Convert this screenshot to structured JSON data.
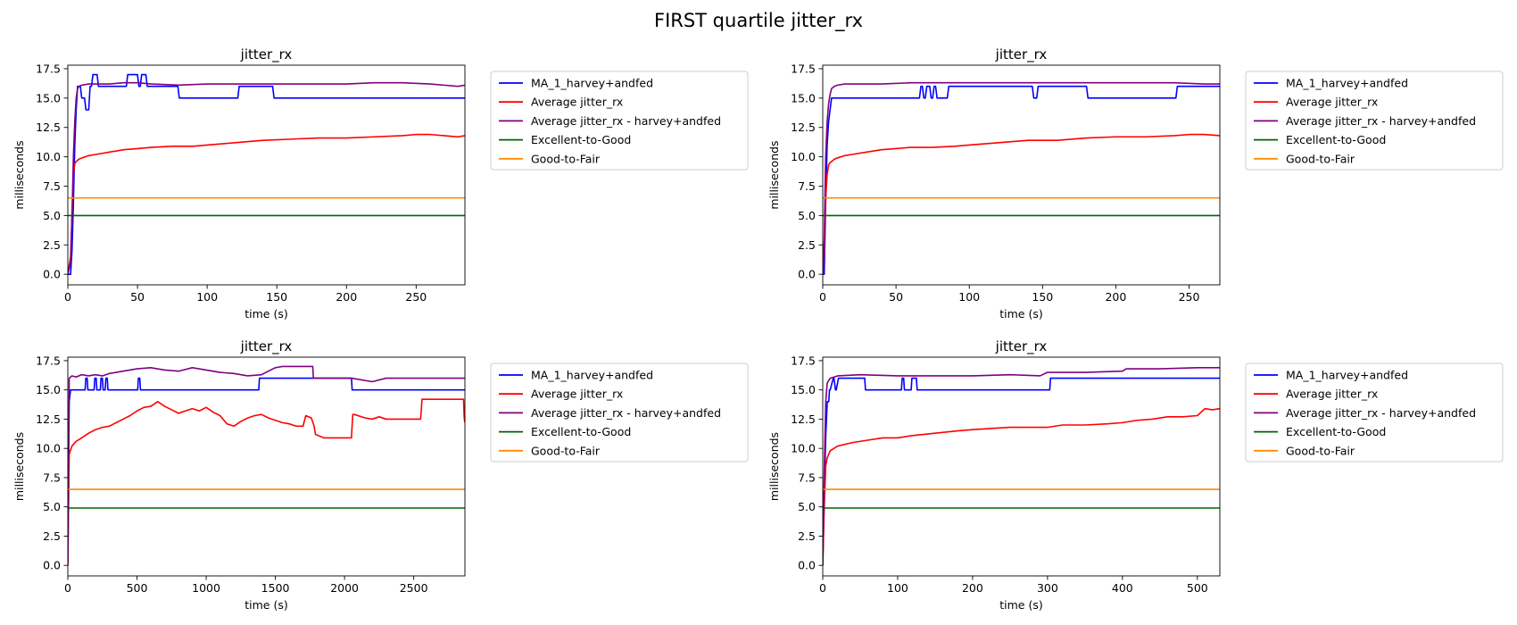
{
  "figure": {
    "suptitle": "FIRST quartile jitter_rx"
  },
  "colors": {
    "ma": "#0000ff",
    "avg": "#ff0000",
    "avg_hf": "#800080",
    "excellent": "#006400",
    "good_fair": "#ff8c00",
    "axis": "#000000",
    "legend_border": "#cccccc"
  },
  "legend": {
    "placement": "outside-right-top",
    "entries": [
      {
        "label": "MA_1_harvey+andfed",
        "color_key": "ma"
      },
      {
        "label": "Average jitter_rx",
        "color_key": "avg"
      },
      {
        "label": "Average jitter_rx - harvey+andfed",
        "color_key": "avg_hf"
      },
      {
        "label": "Excellent-to-Good",
        "color_key": "excellent"
      },
      {
        "label": "Good-to-Fair",
        "color_key": "good_fair"
      }
    ]
  },
  "chart_data": [
    {
      "type": "line",
      "title": "jitter_rx",
      "xlabel": "time (s)",
      "ylabel": "milliseconds",
      "xlim": [
        0,
        285
      ],
      "ylim": [
        -0.9,
        17.8
      ],
      "xticks": [
        0,
        50,
        100,
        150,
        200,
        250
      ],
      "yticks": [
        0.0,
        2.5,
        5.0,
        7.5,
        10.0,
        12.5,
        15.0,
        17.5
      ],
      "grid": false,
      "series": [
        {
          "name": "MA_1_harvey+andfed",
          "color_key": "ma",
          "x": [
            0,
            2,
            3,
            4,
            5,
            6,
            7,
            9,
            10,
            12,
            13,
            15,
            16,
            17,
            18,
            19,
            20,
            21,
            22,
            23,
            42,
            43,
            50,
            51,
            52,
            53,
            54,
            56,
            57,
            58,
            79,
            80,
            122,
            123,
            147,
            148,
            285
          ],
          "y": [
            0,
            0,
            2,
            6,
            11,
            14,
            16,
            16,
            15,
            15,
            14,
            14,
            16,
            16,
            17,
            17,
            17,
            17,
            16,
            16,
            16,
            17,
            17,
            16,
            16,
            17,
            17,
            17,
            16,
            16,
            16,
            15,
            15,
            16,
            16,
            15,
            15
          ]
        },
        {
          "name": "Average jitter_rx",
          "color_key": "avg",
          "x": [
            0,
            2,
            3,
            4,
            5,
            6,
            8,
            10,
            15,
            20,
            30,
            40,
            50,
            60,
            75,
            90,
            100,
            120,
            140,
            160,
            180,
            200,
            220,
            240,
            250,
            260,
            270,
            280,
            285
          ],
          "y": [
            0,
            1.5,
            5,
            8.5,
            9.4,
            9.6,
            9.8,
            9.9,
            10.1,
            10.2,
            10.4,
            10.6,
            10.7,
            10.8,
            10.9,
            10.9,
            11.0,
            11.2,
            11.4,
            11.5,
            11.6,
            11.6,
            11.7,
            11.8,
            11.9,
            11.9,
            11.8,
            11.7,
            11.8
          ]
        },
        {
          "name": "Average jitter_rx - harvey+andfed",
          "color_key": "avg_hf",
          "x": [
            0,
            2,
            3,
            4,
            5,
            6,
            7,
            8,
            10,
            15,
            20,
            30,
            40,
            50,
            60,
            80,
            100,
            120,
            140,
            160,
            180,
            200,
            220,
            240,
            260,
            270,
            280,
            285
          ],
          "y": [
            0,
            1,
            5,
            10,
            13,
            15,
            15.8,
            16.0,
            16.1,
            16.2,
            16.2,
            16.2,
            16.3,
            16.3,
            16.2,
            16.1,
            16.2,
            16.2,
            16.2,
            16.2,
            16.2,
            16.2,
            16.3,
            16.3,
            16.2,
            16.1,
            16.0,
            16.1
          ]
        },
        {
          "name": "Excellent-to-Good",
          "color_key": "excellent",
          "x": [
            0,
            285
          ],
          "y": [
            5.0,
            5.0
          ]
        },
        {
          "name": "Good-to-Fair",
          "color_key": "good_fair",
          "x": [
            0,
            285
          ],
          "y": [
            6.5,
            6.5
          ]
        }
      ]
    },
    {
      "type": "line",
      "title": "jitter_rx",
      "xlabel": "time (s)",
      "ylabel": "milliseconds",
      "xlim": [
        0,
        271
      ],
      "ylim": [
        -0.9,
        17.8
      ],
      "xticks": [
        0,
        50,
        100,
        150,
        200,
        250
      ],
      "yticks": [
        0.0,
        2.5,
        5.0,
        7.5,
        10.0,
        12.5,
        15.0,
        17.5
      ],
      "grid": false,
      "series": [
        {
          "name": "MA_1_harvey+andfed",
          "color_key": "ma",
          "x": [
            0,
            1,
            2,
            3,
            4,
            5,
            6,
            7,
            66,
            67,
            68,
            69,
            70,
            71,
            73,
            74,
            75,
            76,
            77,
            78,
            85,
            86,
            143,
            144,
            146,
            147,
            150,
            151,
            180,
            181,
            241,
            242,
            271
          ],
          "y": [
            0,
            0,
            6,
            11,
            13,
            14,
            15,
            15,
            15,
            16,
            16,
            15,
            15,
            16,
            16,
            15,
            15,
            16,
            16,
            15,
            15,
            16,
            16,
            15,
            15,
            16,
            16,
            16,
            16,
            15,
            15,
            16,
            16
          ]
        },
        {
          "name": "Average jitter_rx",
          "color_key": "avg",
          "x": [
            0,
            1,
            2,
            3,
            4,
            5,
            6,
            8,
            10,
            15,
            20,
            30,
            40,
            50,
            60,
            75,
            90,
            100,
            120,
            140,
            160,
            180,
            200,
            220,
            240,
            250,
            260,
            271
          ],
          "y": [
            0,
            2,
            6.5,
            8.5,
            9.3,
            9.5,
            9.6,
            9.8,
            9.9,
            10.1,
            10.2,
            10.4,
            10.6,
            10.7,
            10.8,
            10.8,
            10.9,
            11.0,
            11.2,
            11.4,
            11.4,
            11.6,
            11.7,
            11.7,
            11.8,
            11.9,
            11.9,
            11.8
          ]
        },
        {
          "name": "Average jitter_rx - harvey+andfed",
          "color_key": "avg_hf",
          "x": [
            0,
            1,
            2,
            3,
            4,
            5,
            6,
            8,
            10,
            15,
            20,
            30,
            40,
            60,
            80,
            100,
            120,
            140,
            160,
            180,
            200,
            220,
            240,
            260,
            271
          ],
          "y": [
            0,
            3,
            10,
            13,
            14.5,
            15.3,
            15.8,
            16.0,
            16.1,
            16.2,
            16.2,
            16.2,
            16.2,
            16.3,
            16.3,
            16.3,
            16.3,
            16.3,
            16.3,
            16.3,
            16.3,
            16.3,
            16.3,
            16.2,
            16.2
          ]
        },
        {
          "name": "Excellent-to-Good",
          "color_key": "excellent",
          "x": [
            0,
            271
          ],
          "y": [
            5.0,
            5.0
          ]
        },
        {
          "name": "Good-to-Fair",
          "color_key": "good_fair",
          "x": [
            0,
            271
          ],
          "y": [
            6.5,
            6.5
          ]
        }
      ]
    },
    {
      "type": "line",
      "title": "jitter_rx",
      "xlabel": "time (s)",
      "ylabel": "milliseconds",
      "xlim": [
        0,
        2870
      ],
      "ylim": [
        -0.9,
        17.8
      ],
      "xticks": [
        0,
        500,
        1000,
        1500,
        2000,
        2500
      ],
      "yticks": [
        0.0,
        2.5,
        5.0,
        7.5,
        10.0,
        12.5,
        15.0,
        17.5
      ],
      "grid": false,
      "series": [
        {
          "name": "MA_1_harvey+andfed",
          "color_key": "ma",
          "x": [
            0,
            10,
            20,
            125,
            130,
            140,
            145,
            190,
            195,
            205,
            210,
            235,
            240,
            250,
            255,
            270,
            275,
            285,
            290,
            360,
            365,
            505,
            510,
            520,
            525,
            1380,
            1385,
            2050,
            2055,
            2870
          ],
          "y": [
            0,
            14,
            15,
            15,
            16,
            16,
            15,
            15,
            16,
            16,
            15,
            15,
            16,
            16,
            15,
            15,
            16,
            16,
            15,
            15,
            15,
            15,
            16,
            16,
            15,
            15,
            16,
            16,
            15,
            15
          ]
        },
        {
          "name": "Average jitter_rx",
          "color_key": "avg",
          "x": [
            0,
            10,
            30,
            60,
            100,
            150,
            200,
            250,
            300,
            350,
            400,
            450,
            500,
            550,
            600,
            650,
            700,
            750,
            800,
            850,
            900,
            950,
            1000,
            1050,
            1100,
            1150,
            1200,
            1250,
            1300,
            1350,
            1400,
            1450,
            1500,
            1550,
            1600,
            1650,
            1700,
            1720,
            1760,
            1780,
            1790,
            1850,
            1900,
            2050,
            2055,
            2060,
            2070,
            2150,
            2200,
            2250,
            2300,
            2550,
            2560,
            2860,
            2865,
            2870
          ],
          "y": [
            0,
            9.5,
            10.2,
            10.6,
            10.9,
            11.3,
            11.6,
            11.8,
            11.9,
            12.2,
            12.5,
            12.8,
            13.2,
            13.5,
            13.6,
            14.0,
            13.6,
            13.3,
            13.0,
            13.2,
            13.4,
            13.2,
            13.5,
            13.1,
            12.8,
            12.1,
            11.9,
            12.3,
            12.6,
            12.8,
            12.9,
            12.6,
            12.4,
            12.2,
            12.1,
            11.9,
            11.9,
            12.8,
            12.6,
            11.9,
            11.2,
            10.9,
            10.9,
            10.9,
            12.0,
            12.9,
            12.9,
            12.6,
            12.5,
            12.7,
            12.5,
            12.5,
            14.2,
            14.2,
            12.6,
            12.2
          ]
        },
        {
          "name": "Average jitter_rx - harvey+andfed",
          "color_key": "avg_hf",
          "x": [
            0,
            10,
            30,
            60,
            100,
            150,
            200,
            250,
            300,
            350,
            400,
            500,
            600,
            700,
            800,
            900,
            1000,
            1100,
            1200,
            1300,
            1400,
            1450,
            1500,
            1550,
            1770,
            1775,
            2050,
            2200,
            2300,
            2870
          ],
          "y": [
            0,
            16.0,
            16.2,
            16.1,
            16.3,
            16.2,
            16.3,
            16.2,
            16.4,
            16.5,
            16.6,
            16.8,
            16.9,
            16.7,
            16.6,
            16.9,
            16.7,
            16.5,
            16.4,
            16.2,
            16.3,
            16.6,
            16.9,
            17.0,
            17.0,
            16.0,
            16.0,
            15.7,
            16.0,
            16.0
          ]
        },
        {
          "name": "Excellent-to-Good",
          "color_key": "excellent",
          "x": [
            0,
            2870
          ],
          "y": [
            4.9,
            4.9
          ]
        },
        {
          "name": "Good-to-Fair",
          "color_key": "good_fair",
          "x": [
            0,
            2870
          ],
          "y": [
            6.5,
            6.5
          ]
        }
      ]
    },
    {
      "type": "line",
      "title": "jitter_rx",
      "xlabel": "time (s)",
      "ylabel": "milliseconds",
      "xlim": [
        0,
        530
      ],
      "ylim": [
        -0.9,
        17.8
      ],
      "xticks": [
        0,
        100,
        200,
        300,
        400,
        500
      ],
      "yticks": [
        0.0,
        2.5,
        5.0,
        7.5,
        10.0,
        12.5,
        15.0,
        17.5
      ],
      "grid": false,
      "series": [
        {
          "name": "MA_1_harvey+andfed",
          "color_key": "ma",
          "x": [
            0,
            2,
            4,
            6,
            8,
            9,
            10,
            14,
            15,
            17,
            18,
            21,
            22,
            33,
            34,
            56,
            57,
            105,
            106,
            108,
            109,
            118,
            119,
            125,
            126,
            303,
            304,
            530
          ],
          "y": [
            0,
            6,
            11,
            14,
            14,
            15,
            15,
            16,
            16,
            15,
            15,
            16,
            16,
            16,
            16,
            16,
            15,
            15,
            16,
            16,
            15,
            15,
            16,
            16,
            15,
            15,
            16,
            16
          ]
        },
        {
          "name": "Average jitter_rx",
          "color_key": "avg",
          "x": [
            0,
            2,
            4,
            6,
            10,
            20,
            40,
            60,
            80,
            100,
            120,
            150,
            180,
            200,
            250,
            300,
            320,
            350,
            380,
            400,
            420,
            440,
            460,
            480,
            500,
            510,
            520,
            530
          ],
          "y": [
            0,
            5,
            8.5,
            9.2,
            9.8,
            10.2,
            10.5,
            10.7,
            10.9,
            10.9,
            11.1,
            11.3,
            11.5,
            11.6,
            11.8,
            11.8,
            12.0,
            12.0,
            12.1,
            12.2,
            12.4,
            12.5,
            12.7,
            12.7,
            12.8,
            13.4,
            13.3,
            13.4
          ]
        },
        {
          "name": "Average jitter_rx - harvey+andfed",
          "color_key": "avg_hf",
          "x": [
            0,
            2,
            4,
            6,
            10,
            20,
            50,
            100,
            150,
            200,
            250,
            290,
            300,
            350,
            400,
            405,
            450,
            500,
            530
          ],
          "y": [
            0,
            8,
            14,
            15.6,
            16.0,
            16.2,
            16.3,
            16.2,
            16.2,
            16.2,
            16.3,
            16.2,
            16.5,
            16.5,
            16.6,
            16.8,
            16.8,
            16.9,
            16.9
          ]
        },
        {
          "name": "Excellent-to-Good",
          "color_key": "excellent",
          "x": [
            0,
            530
          ],
          "y": [
            4.9,
            4.9
          ]
        },
        {
          "name": "Good-to-Fair",
          "color_key": "good_fair",
          "x": [
            0,
            530
          ],
          "y": [
            6.5,
            6.5
          ]
        }
      ]
    }
  ]
}
